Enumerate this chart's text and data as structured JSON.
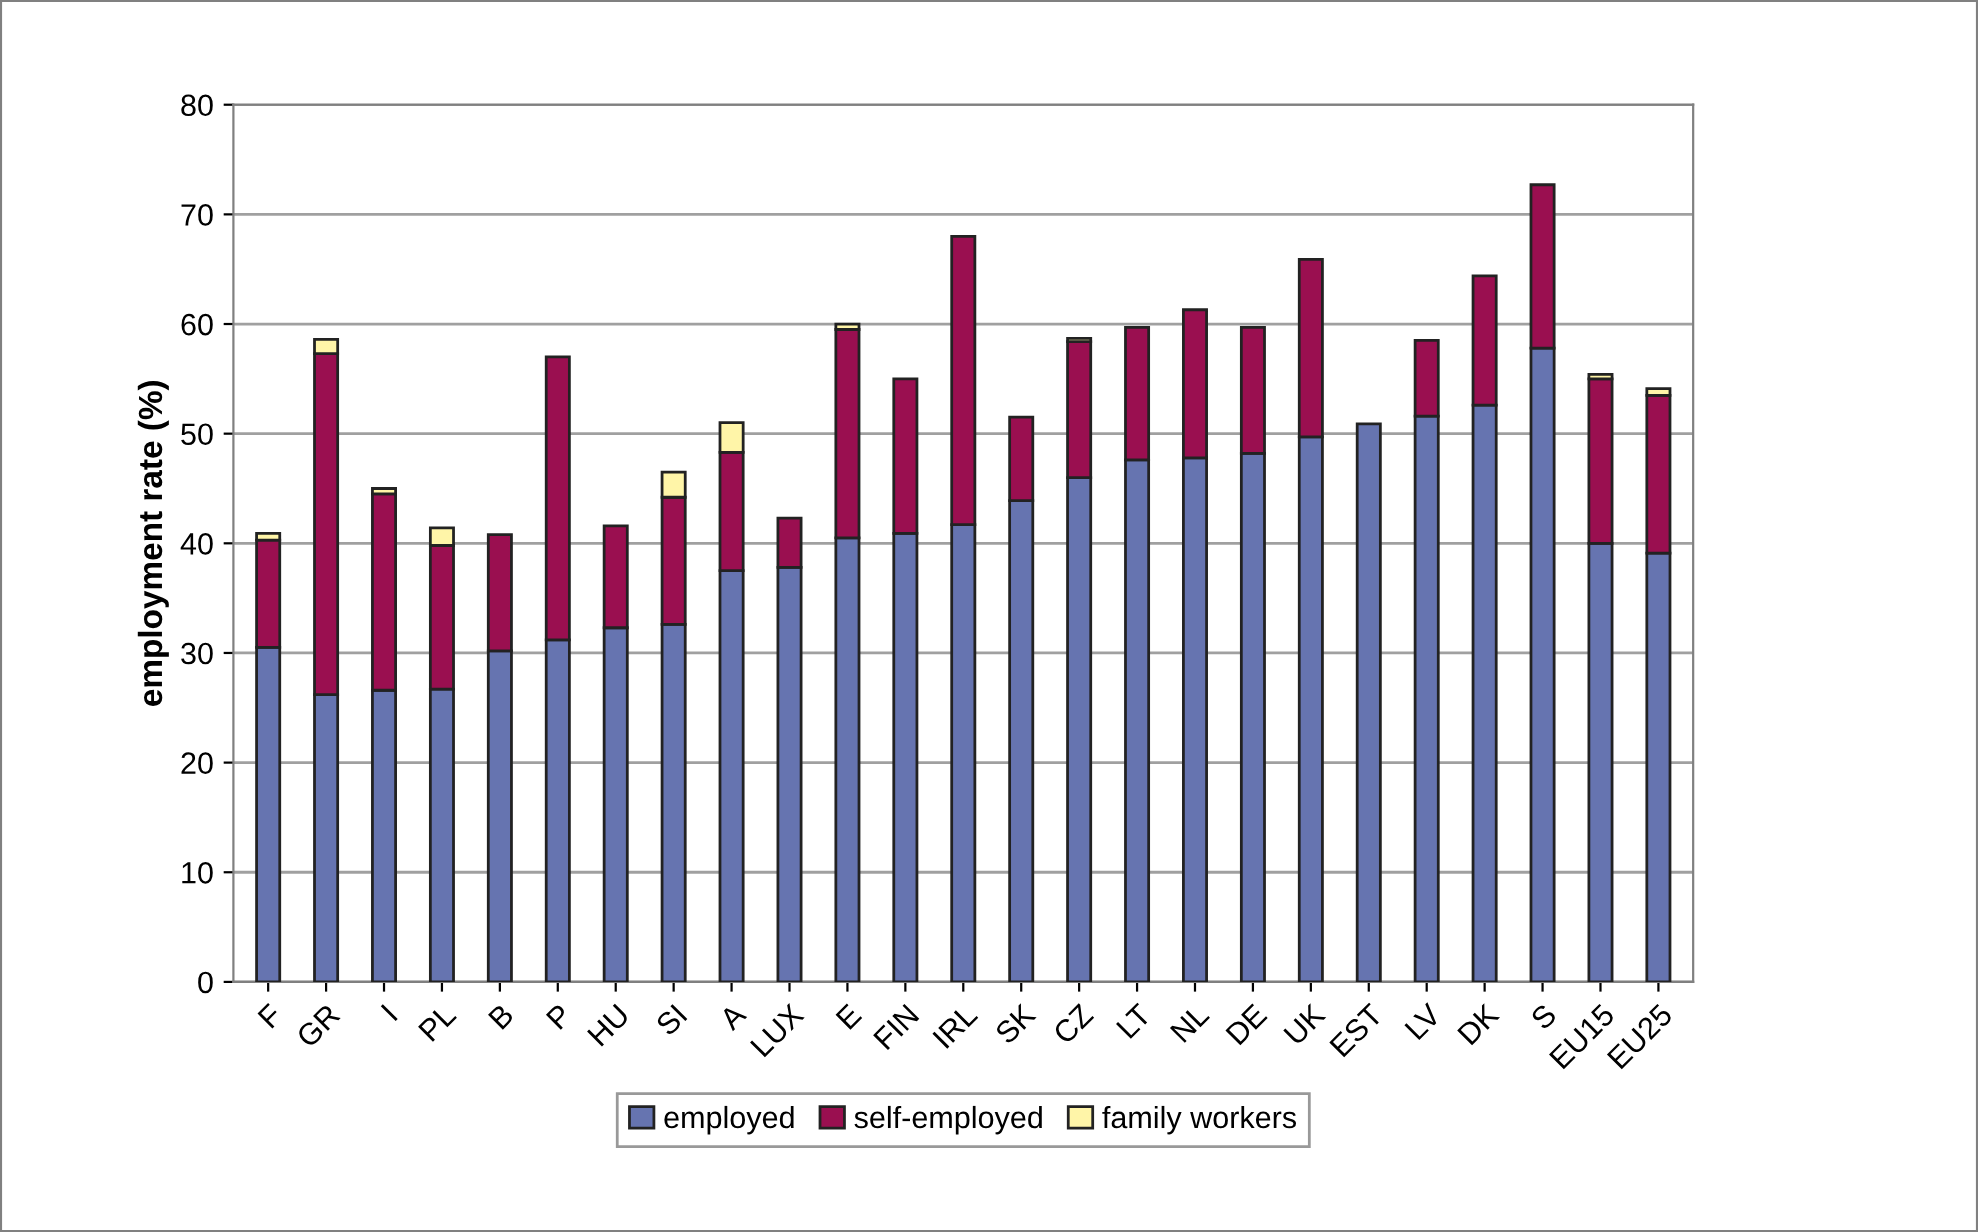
{
  "chart_data": {
    "type": "bar",
    "stacked": true,
    "ylabel": "employment rate (%)",
    "categories": [
      "F",
      "GR",
      "I",
      "PL",
      "B",
      "P",
      "HU",
      "SI",
      "A",
      "LUX",
      "E",
      "FIN",
      "IRL",
      "SK",
      "CZ",
      "LT",
      "NL",
      "DE",
      "UK",
      "EST",
      "LV",
      "DK",
      "S",
      "EU15",
      "EU25"
    ],
    "series": [
      {
        "name": "employed",
        "color": "#6674b0",
        "values": [
          30.5,
          26.2,
          26.6,
          26.7,
          30.2,
          31.2,
          32.3,
          32.6,
          37.5,
          37.8,
          40.5,
          40.9,
          41.7,
          43.9,
          46.0,
          47.6,
          47.8,
          48.2,
          49.7,
          50.9,
          51.6,
          52.6,
          57.8,
          40.0,
          39.1
        ]
      },
      {
        "name": "self-employed",
        "color": "#9a0f50",
        "values": [
          9.8,
          31.1,
          17.9,
          13.1,
          10.6,
          25.8,
          9.3,
          11.6,
          10.8,
          4.5,
          19.0,
          14.1,
          26.3,
          7.6,
          12.4,
          12.1,
          13.5,
          11.5,
          16.2,
          null,
          6.9,
          11.8,
          14.9,
          15.0,
          14.4
        ]
      },
      {
        "name": "family workers",
        "color": "#fff5a8",
        "values": [
          0.6,
          1.3,
          0.5,
          1.6,
          null,
          null,
          null,
          2.3,
          2.7,
          null,
          0.5,
          null,
          null,
          null,
          0.3,
          null,
          null,
          null,
          null,
          null,
          null,
          null,
          null,
          0.4,
          0.6
        ]
      }
    ],
    "ylim": [
      0,
      80
    ],
    "yticks": [
      0,
      10,
      20,
      30,
      40,
      50,
      60,
      70,
      80
    ],
    "grid": "y",
    "legend": "bottom"
  }
}
